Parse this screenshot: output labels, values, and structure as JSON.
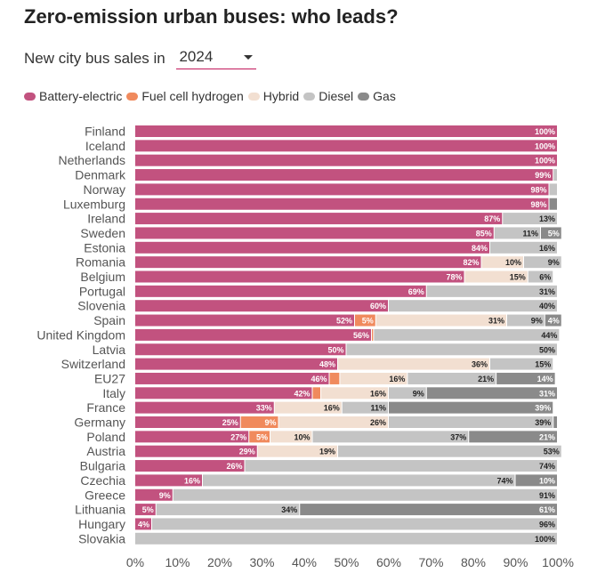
{
  "title": "Zero-emission urban buses: who leads?",
  "selector": {
    "label": "New city bus sales in",
    "value": "2024"
  },
  "legend": [
    {
      "name": "Battery-electric",
      "color": "#c2527f"
    },
    {
      "name": "Fuel cell hydrogen",
      "color": "#f08a5d"
    },
    {
      "name": "Hybrid",
      "color": "#f2dfd1"
    },
    {
      "name": "Diesel",
      "color": "#c4c4c4"
    },
    {
      "name": "Gas",
      "color": "#8a8a8a"
    }
  ],
  "chart_data": {
    "type": "bar",
    "orientation": "horizontal",
    "stacked": true,
    "title": "Zero-emission urban buses: who leads?",
    "xlim": [
      0,
      100
    ],
    "x_ticks": [
      "0%",
      "10%",
      "20%",
      "30%",
      "40%",
      "50%",
      "60%",
      "70%",
      "80%",
      "90%",
      "100%"
    ],
    "categories": [
      "Finland",
      "Iceland",
      "Netherlands",
      "Denmark",
      "Norway",
      "Luxemburg",
      "Ireland",
      "Sweden",
      "Estonia",
      "Romania",
      "Belgium",
      "Portugal",
      "Slovenia",
      "Spain",
      "United Kingdom",
      "Latvia",
      "Switzerland",
      "EU27",
      "Italy",
      "France",
      "Germany",
      "Poland",
      "Austria",
      "Bulgaria",
      "Czechia",
      "Greece",
      "Lithuania",
      "Hungary",
      "Slovakia"
    ],
    "series": [
      {
        "name": "Battery-electric",
        "color": "#c2527f",
        "values": [
          100,
          100,
          100,
          99,
          98,
          98,
          87,
          85,
          84,
          82,
          78,
          69,
          60,
          52,
          56,
          50,
          48,
          46,
          42,
          33,
          25,
          27,
          29,
          26,
          16,
          9,
          5,
          4,
          0
        ],
        "labels": [
          "100%",
          "100%",
          "100%",
          "99%",
          "98%",
          "98%",
          "87%",
          "85%",
          "84%",
          "82%",
          "78%",
          "69%",
          "60%",
          "52%",
          "56%",
          "50%",
          "48%",
          "46%",
          "42%",
          "33%",
          "25%",
          "27%",
          "29%",
          "26%",
          "16%",
          "9%",
          "5%",
          "4%",
          ""
        ]
      },
      {
        "name": "Fuel cell hydrogen",
        "color": "#f08a5d",
        "values": [
          0,
          0,
          0,
          0,
          0,
          0,
          0,
          0,
          0,
          0,
          0,
          0,
          0,
          5,
          0.5,
          0,
          0,
          2.5,
          2,
          0,
          9,
          5,
          0,
          0,
          0,
          0,
          0,
          0,
          0
        ],
        "labels": [
          "",
          "",
          "",
          "",
          "",
          "",
          "",
          "",
          "",
          "",
          "",
          "",
          "",
          "5%",
          "",
          "",
          "",
          "",
          "",
          "",
          "9%",
          "5%",
          "",
          "",
          "",
          "",
          "",
          "",
          ""
        ]
      },
      {
        "name": "Hybrid",
        "color": "#f2dfd1",
        "values": [
          0,
          0,
          0,
          0,
          0,
          0,
          0,
          0,
          0,
          10,
          15,
          0,
          0,
          31,
          0,
          0,
          36,
          16,
          16,
          16,
          26,
          10,
          19,
          0,
          0,
          0,
          0,
          0,
          0
        ],
        "labels": [
          "",
          "",
          "",
          "",
          "",
          "",
          "",
          "",
          "",
          "10%",
          "15%",
          "",
          "",
          "31%",
          "",
          "",
          "36%",
          "16%",
          "16%",
          "16%",
          "26%",
          "10%",
          "19%",
          "",
          "",
          "",
          "",
          "",
          ""
        ]
      },
      {
        "name": "Diesel",
        "color": "#c4c4c4",
        "values": [
          0,
          0,
          0,
          1,
          2,
          0,
          13,
          11,
          16,
          9,
          6,
          31,
          40,
          9,
          44,
          50,
          15,
          21,
          9,
          11,
          39,
          37,
          53,
          74,
          74,
          91,
          34,
          96,
          100
        ],
        "labels": [
          "",
          "",
          "",
          "",
          "",
          "",
          "13%",
          "11%",
          "16%",
          "9%",
          "6%",
          "31%",
          "40%",
          "9%",
          "44%",
          "50%",
          "15%",
          "21%",
          "9%",
          "11%",
          "39%",
          "37%",
          "53%",
          "74%",
          "74%",
          "91%",
          "34%",
          "96%",
          "100%"
        ]
      },
      {
        "name": "Gas",
        "color": "#8a8a8a",
        "values": [
          0,
          0,
          0,
          0,
          0,
          2,
          0,
          5,
          0,
          0,
          0,
          0,
          0,
          4,
          0,
          0,
          0,
          14,
          31,
          39,
          1,
          21,
          0,
          0,
          10,
          0,
          61,
          0,
          0
        ],
        "labels": [
          "",
          "",
          "",
          "",
          "",
          "",
          "",
          "5%",
          "",
          "",
          "",
          "",
          "",
          "4%",
          "",
          "",
          "",
          "14%",
          "31%",
          "39%",
          "",
          "21%",
          "",
          "",
          "10%",
          "",
          "61%",
          "",
          ""
        ]
      }
    ]
  }
}
